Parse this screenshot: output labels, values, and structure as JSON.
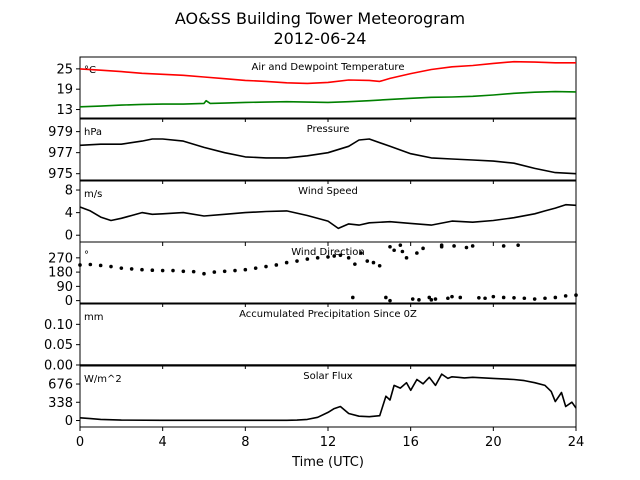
{
  "figure": {
    "title": "AO&SS Building Tower Meteorogram",
    "subtitle": "2012-06-24",
    "xlabel": "Time (UTC)",
    "x_ticks": [
      0,
      4,
      8,
      12,
      16,
      20,
      24
    ],
    "xlim": [
      0,
      24
    ]
  },
  "chart_data": [
    {
      "type": "line",
      "title": "Air and Dewpoint Temperature",
      "unit_label": "°C",
      "ylim": [
        10.5,
        28.5
      ],
      "y_ticks": [
        13,
        19,
        25
      ],
      "y_tick_labels": [
        "13",
        "19",
        "25"
      ],
      "series": [
        {
          "color": "#ff0000",
          "x": [
            0,
            1,
            2,
            3,
            4,
            5,
            6,
            7,
            8,
            9,
            10,
            11,
            12,
            13,
            14,
            14.5,
            15,
            16,
            17,
            18,
            19,
            20,
            21,
            22,
            23,
            24
          ],
          "values": [
            25,
            24.6,
            24.2,
            23.7,
            23.4,
            23.1,
            22.6,
            22.1,
            21.6,
            21.3,
            20.9,
            20.7,
            21.0,
            21.7,
            21.6,
            21.3,
            22.2,
            23.6,
            24.8,
            25.6,
            26.0,
            26.6,
            27.1,
            27.0,
            26.8,
            26.8
          ]
        },
        {
          "color": "#008000",
          "x": [
            0,
            1,
            2,
            3,
            4,
            5,
            6,
            6.1,
            6.3,
            7,
            8,
            9,
            10,
            11,
            12,
            13,
            14,
            15,
            16,
            17,
            18,
            19,
            20,
            21,
            22,
            23,
            24
          ],
          "values": [
            13.8,
            14.0,
            14.3,
            14.5,
            14.6,
            14.6,
            14.8,
            15.6,
            14.8,
            14.9,
            15.1,
            15.2,
            15.3,
            15.2,
            15.1,
            15.3,
            15.6,
            16.0,
            16.3,
            16.6,
            16.7,
            16.9,
            17.3,
            17.8,
            18.1,
            18.3,
            18.2
          ]
        }
      ]
    },
    {
      "type": "line",
      "title": "Pressure",
      "unit_label": "hPa",
      "ylim": [
        974.4,
        980.2
      ],
      "y_ticks": [
        975,
        977,
        979
      ],
      "y_tick_labels": [
        "975",
        "977",
        "979"
      ],
      "series": [
        {
          "color": "#000000",
          "x": [
            0,
            1,
            2,
            3,
            3.5,
            4,
            5,
            6,
            7,
            8,
            9,
            10,
            11,
            12,
            13,
            13.5,
            14,
            15,
            16,
            17,
            18,
            19,
            20,
            21,
            22,
            23,
            24
          ],
          "values": [
            977.7,
            977.8,
            977.8,
            978.1,
            978.3,
            978.3,
            978.1,
            977.5,
            977.0,
            976.6,
            976.5,
            976.5,
            976.7,
            977.0,
            977.6,
            978.2,
            978.3,
            977.6,
            976.9,
            976.5,
            976.4,
            976.3,
            976.2,
            976.0,
            975.5,
            975.1,
            975.0
          ]
        }
      ]
    },
    {
      "type": "line",
      "title": "Wind Speed",
      "unit_label": "m/s",
      "ylim": [
        -1.2,
        9.6
      ],
      "y_ticks": [
        0,
        4,
        8
      ],
      "y_tick_labels": [
        "0",
        "4",
        "8"
      ],
      "series": [
        {
          "color": "#000000",
          "x": [
            0,
            0.5,
            1,
            1.5,
            2,
            2.5,
            3,
            3.5,
            4,
            5,
            6,
            7,
            8,
            9,
            10,
            11,
            12,
            12.5,
            13,
            13.5,
            14,
            15,
            16,
            17,
            18,
            19,
            20,
            21,
            22,
            22.5,
            23,
            23.5,
            24
          ],
          "values": [
            5.0,
            4.3,
            3.2,
            2.6,
            3.0,
            3.5,
            4.0,
            3.7,
            3.8,
            4.0,
            3.4,
            3.7,
            4.0,
            4.2,
            4.3,
            3.5,
            2.5,
            1.2,
            2.0,
            1.8,
            2.2,
            2.4,
            2.1,
            1.8,
            2.5,
            2.3,
            2.6,
            3.1,
            3.8,
            4.3,
            4.8,
            5.4,
            5.3
          ]
        }
      ]
    },
    {
      "type": "scatter",
      "title": "Wind Direction",
      "unit_label": "°",
      "ylim": [
        -15,
        370
      ],
      "y_ticks": [
        0,
        90,
        180,
        270
      ],
      "y_tick_labels": [
        "0",
        "90",
        "180",
        "270"
      ],
      "series": [
        {
          "color": "#000000",
          "x": [
            0,
            0.5,
            1,
            1.5,
            2,
            2.5,
            3,
            3.5,
            4,
            4.5,
            5,
            5.5,
            6,
            6.5,
            7,
            7.5,
            8,
            8.5,
            9,
            9.5,
            10,
            10.5,
            11,
            11.5,
            12,
            12.3,
            12.6,
            13.0,
            13.3,
            13.6,
            13.9,
            14.2,
            14.5,
            14.8,
            15.0,
            15.2,
            15.5,
            15.8,
            16.1,
            16.3,
            16.6,
            16.9,
            17.2,
            17.5,
            17.8,
            18.1,
            18.4,
            18.7,
            19.0,
            19.3,
            19.6,
            20.0,
            20.5,
            21.0,
            21.5,
            22.0,
            22.5,
            23.0,
            23.5,
            24.0,
            13.2,
            15.0,
            15.6,
            16.4,
            17.0,
            17.5,
            18.0,
            20.5,
            21.2
          ],
          "values": [
            225,
            228,
            222,
            215,
            205,
            200,
            195,
            192,
            190,
            190,
            185,
            183,
            170,
            180,
            185,
            190,
            195,
            205,
            215,
            225,
            240,
            250,
            262,
            270,
            276,
            282,
            286,
            270,
            230,
            300,
            250,
            240,
            220,
            20,
            340,
            318,
            350,
            270,
            10,
            300,
            330,
            20,
            10,
            340,
            15,
            345,
            20,
            335,
            345,
            18,
            15,
            25,
            20,
            18,
            15,
            10,
            15,
            20,
            30,
            35,
            20,
            0,
            310,
            5,
            5,
            350,
            25,
            345,
            350
          ]
        }
      ]
    },
    {
      "type": "line",
      "title": "Accumulated Precipitation Since 0Z",
      "unit_label": "mm",
      "ylim": [
        0,
        0.15
      ],
      "y_ticks": [
        0.0,
        0.05,
        0.1
      ],
      "y_tick_labels": [
        "0.00",
        "0.05",
        "0.10"
      ],
      "series": [
        {
          "color": "#000000",
          "x": [
            0,
            24
          ],
          "values": [
            0,
            0
          ]
        }
      ]
    },
    {
      "type": "line",
      "title": "Solar Flux",
      "unit_label": "W/m^2",
      "ylim": [
        -120,
        1010
      ],
      "y_ticks": [
        0,
        338,
        676
      ],
      "y_tick_labels": [
        "0",
        "338",
        "676"
      ],
      "series": [
        {
          "color": "#000000",
          "x": [
            0,
            0.5,
            1,
            2,
            4,
            6,
            8,
            10,
            10.5,
            11,
            11.5,
            12,
            12.3,
            12.6,
            13.0,
            13.5,
            14.0,
            14.5,
            14.8,
            15.0,
            15.2,
            15.5,
            15.8,
            16.0,
            16.3,
            16.6,
            16.9,
            17.2,
            17.5,
            17.8,
            18.0,
            18.3,
            18.6,
            19.0,
            20.0,
            21.0,
            21.5,
            22.0,
            22.5,
            22.8,
            23.0,
            23.3,
            23.5,
            23.8,
            24.0
          ],
          "values": [
            50,
            35,
            20,
            8,
            5,
            5,
            5,
            5,
            8,
            20,
            60,
            150,
            220,
            260,
            130,
            80,
            70,
            90,
            450,
            380,
            650,
            600,
            700,
            560,
            760,
            680,
            800,
            650,
            860,
            780,
            810,
            800,
            790,
            800,
            780,
            760,
            740,
            700,
            650,
            540,
            350,
            520,
            260,
            340,
            230
          ]
        }
      ]
    }
  ]
}
